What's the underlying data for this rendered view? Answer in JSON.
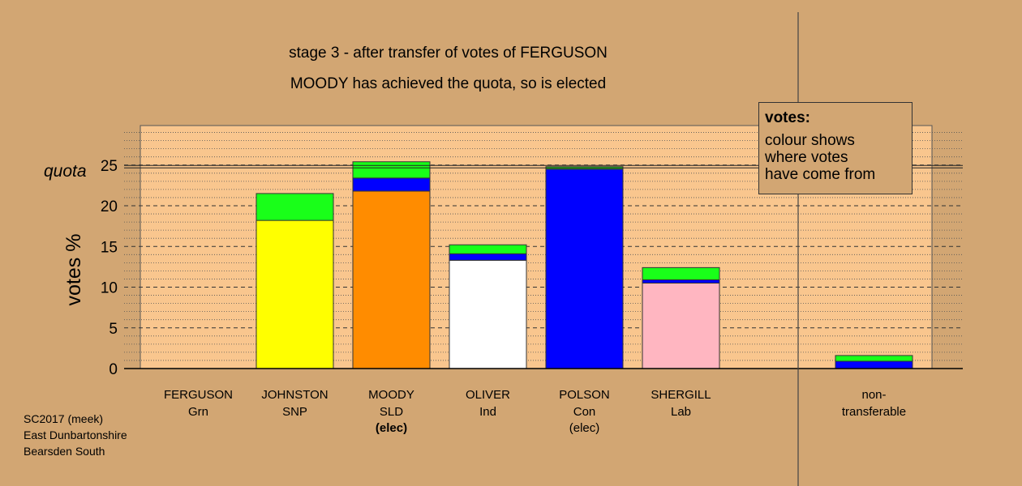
{
  "title": {
    "line1": "stage 3 - after transfer of votes of FERGUSON",
    "line2": "MOODY has achieved the quota, so is elected"
  },
  "legend": {
    "title": "votes:",
    "lines": [
      "colour shows",
      "where votes",
      "have come from"
    ]
  },
  "credit": [
    "SC2017 (meek)",
    "East Dunbartonshire",
    "Bearsden South"
  ],
  "colors": {
    "background": "#d2a673",
    "plot_area": "#f9c68e",
    "transfer_ferguson": "#19ff19",
    "transfer_polson": "#0000ff"
  },
  "chart_data": {
    "type": "bar",
    "stacked": true,
    "ylabel": "votes %",
    "ylim": [
      0,
      30
    ],
    "yticks": [
      0,
      5,
      10,
      15,
      20,
      25
    ],
    "quota": 24.8,
    "quota_label": "quota",
    "grid": "dashed horizontal every 5, dotted minor every 1",
    "categories": [
      {
        "name": "FERGUSON",
        "party": "Grn",
        "status": "",
        "status_bold": false
      },
      {
        "name": "JOHNSTON",
        "party": "SNP",
        "status": "",
        "status_bold": false
      },
      {
        "name": "MOODY",
        "party": "SLD",
        "status": "(elec)",
        "status_bold": true
      },
      {
        "name": "OLIVER",
        "party": "Ind",
        "status": "",
        "status_bold": false
      },
      {
        "name": "POLSON",
        "party": "Con",
        "status": "(elec)",
        "status_bold": false
      },
      {
        "name": "SHERGILL",
        "party": "Lab",
        "status": "",
        "status_bold": false
      },
      {
        "name": "non-",
        "party": "transferable",
        "status": "",
        "status_bold": false
      }
    ],
    "segments": [
      [],
      [
        {
          "color": "#ffff00",
          "value": 18.2
        },
        {
          "color": "#19ff19",
          "value": 3.3
        }
      ],
      [
        {
          "color": "#ff8c00",
          "value": 21.8
        },
        {
          "color": "#0000ff",
          "value": 1.6
        },
        {
          "color": "#19ff19",
          "value": 2.0
        }
      ],
      [
        {
          "color": "#ffffff",
          "value": 13.3
        },
        {
          "color": "#0000ff",
          "value": 0.8
        },
        {
          "color": "#19ff19",
          "value": 1.1
        }
      ],
      [
        {
          "color": "#0000ff",
          "value": 24.5
        },
        {
          "color": "#19ff19",
          "value": 0.3
        }
      ],
      [
        {
          "color": "#ffb6c1",
          "value": 10.5
        },
        {
          "color": "#0000ff",
          "value": 0.4
        },
        {
          "color": "#19ff19",
          "value": 1.5
        }
      ],
      [
        {
          "color": "#0000ff",
          "value": 0.9
        },
        {
          "color": "#19ff19",
          "value": 0.7
        }
      ]
    ]
  }
}
